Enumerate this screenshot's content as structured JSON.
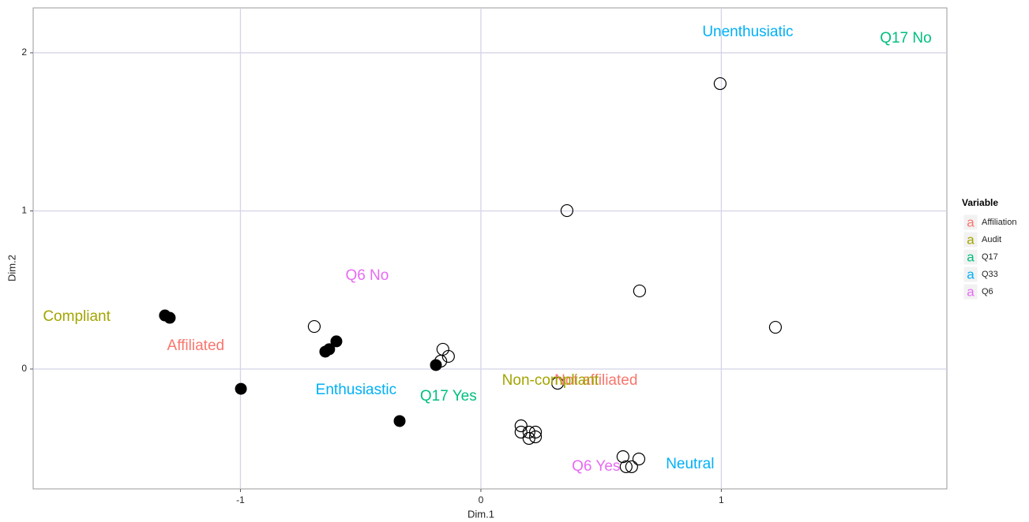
{
  "chart_data": {
    "type": "scatter",
    "xlabel": "Dim.1",
    "ylabel": "Dim.2",
    "xlim": [
      -1.862,
      1.938
    ],
    "ylim": [
      -0.758,
      2.284
    ],
    "xticks": [
      -1,
      0,
      1
    ],
    "yticks": [
      0,
      1,
      2
    ],
    "grid": true,
    "points_filled": {
      "color": "#000000",
      "x": [
        -1.314,
        -1.294,
        -0.998,
        -0.647,
        -0.631,
        -0.601,
        -0.338,
        -0.187
      ],
      "y": [
        0.339,
        0.324,
        -0.125,
        0.11,
        0.125,
        0.175,
        -0.329,
        0.025
      ]
    },
    "points_open": {
      "color": "#000000",
      "x": [
        -0.693,
        -0.158,
        -0.167,
        -0.135,
        0.319,
        0.167,
        0.167,
        0.2,
        0.227,
        0.2,
        0.227,
        0.358,
        0.66,
        0.995,
        1.225,
        0.591,
        0.657,
        0.604,
        0.627
      ],
      "y": [
        0.269,
        0.125,
        0.05,
        0.08,
        -0.09,
        -0.359,
        -0.399,
        -0.399,
        -0.399,
        -0.439,
        -0.429,
        1.002,
        0.494,
        1.805,
        0.264,
        -0.554,
        -0.569,
        -0.618,
        -0.618
      ]
    },
    "legend": {
      "title": "Variable",
      "key": "a",
      "position": "right"
    },
    "series": [
      {
        "name": "Affiliation",
        "color": "#F8766D",
        "labels": [
          "Affiliated",
          "Not affiliated"
        ],
        "x": [
          -1.186,
          0.479
        ],
        "y": [
          0.145,
          -0.075
        ]
      },
      {
        "name": "Audit",
        "color": "#A3A500",
        "labels": [
          "Compliant",
          "Non-compliant"
        ],
        "x": [
          -1.681,
          0.289
        ],
        "y": [
          0.329,
          -0.075
        ]
      },
      {
        "name": "Q17",
        "color": "#00BF7D",
        "labels": [
          "Q17 No",
          "Q17 Yes"
        ],
        "x": [
          1.767,
          -0.135
        ],
        "y": [
          2.09,
          -0.175
        ]
      },
      {
        "name": "Q33",
        "color": "#00B0F6",
        "labels": [
          "Unenthusiatic",
          "Enthusiastic",
          "Neutral"
        ],
        "x": [
          1.11,
          -0.519,
          0.87
        ],
        "y": [
          2.13,
          -0.135,
          -0.603
        ]
      },
      {
        "name": "Q6",
        "color": "#E76BF3",
        "labels": [
          "Q6 No",
          "Q6 Yes"
        ],
        "x": [
          -0.473,
          0.479
        ],
        "y": [
          0.588,
          -0.618
        ]
      }
    ]
  }
}
